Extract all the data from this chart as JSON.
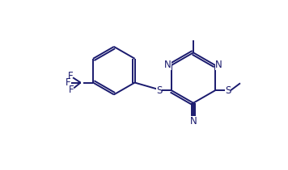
{
  "bg_color": "#ffffff",
  "line_color": "#1a1a6e",
  "line_width": 1.4,
  "font_size": 8.5,
  "figsize": [
    3.56,
    2.11
  ],
  "dpi": 100,
  "xlim": [
    0,
    9.5
  ],
  "ylim": [
    -0.5,
    6.5
  ]
}
